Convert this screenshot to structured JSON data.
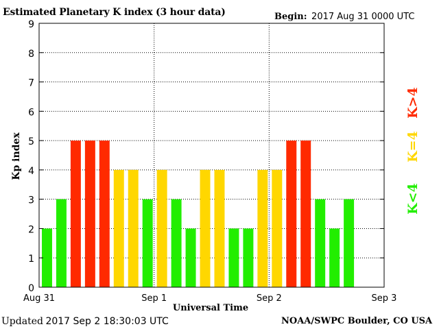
{
  "header": {
    "title": "Estimated Planetary K index (3 hour data)",
    "begin_label": "Begin:",
    "begin_value": "2017 Aug 31 0000 UTC"
  },
  "footer": {
    "updated_label": "Updated",
    "updated_value": "2017 Sep  2 18:30:03 UTC",
    "source": "NOAA/SWPC Boulder, CO USA"
  },
  "legend": [
    {
      "label": "K>4",
      "color": "#ff2a00"
    },
    {
      "label": "K=4",
      "color": "#ffd700"
    },
    {
      "label": "K<4",
      "color": "#22ee00"
    }
  ],
  "chart_data": {
    "type": "bar",
    "title": "Estimated Planetary K index (3 hour data)",
    "xlabel": "Universal Time",
    "ylabel": "Kp index",
    "ylim": [
      0,
      9
    ],
    "yticks": [
      0,
      1,
      2,
      3,
      4,
      5,
      6,
      7,
      8,
      9
    ],
    "x_tick_labels": [
      "Aug 31",
      "Sep 1",
      "Sep 2",
      "Sep 3"
    ],
    "grid": true,
    "legend_position": "right",
    "interval_hours": 3,
    "slots": 24,
    "values": [
      2,
      3,
      5,
      5,
      5,
      4,
      4,
      3,
      4,
      3,
      2,
      4,
      4,
      2,
      2,
      4,
      4,
      5,
      5,
      3,
      2,
      3
    ],
    "colors": {
      "low": "#22ee00",
      "equal": "#ffd700",
      "high": "#ff2a00"
    }
  }
}
